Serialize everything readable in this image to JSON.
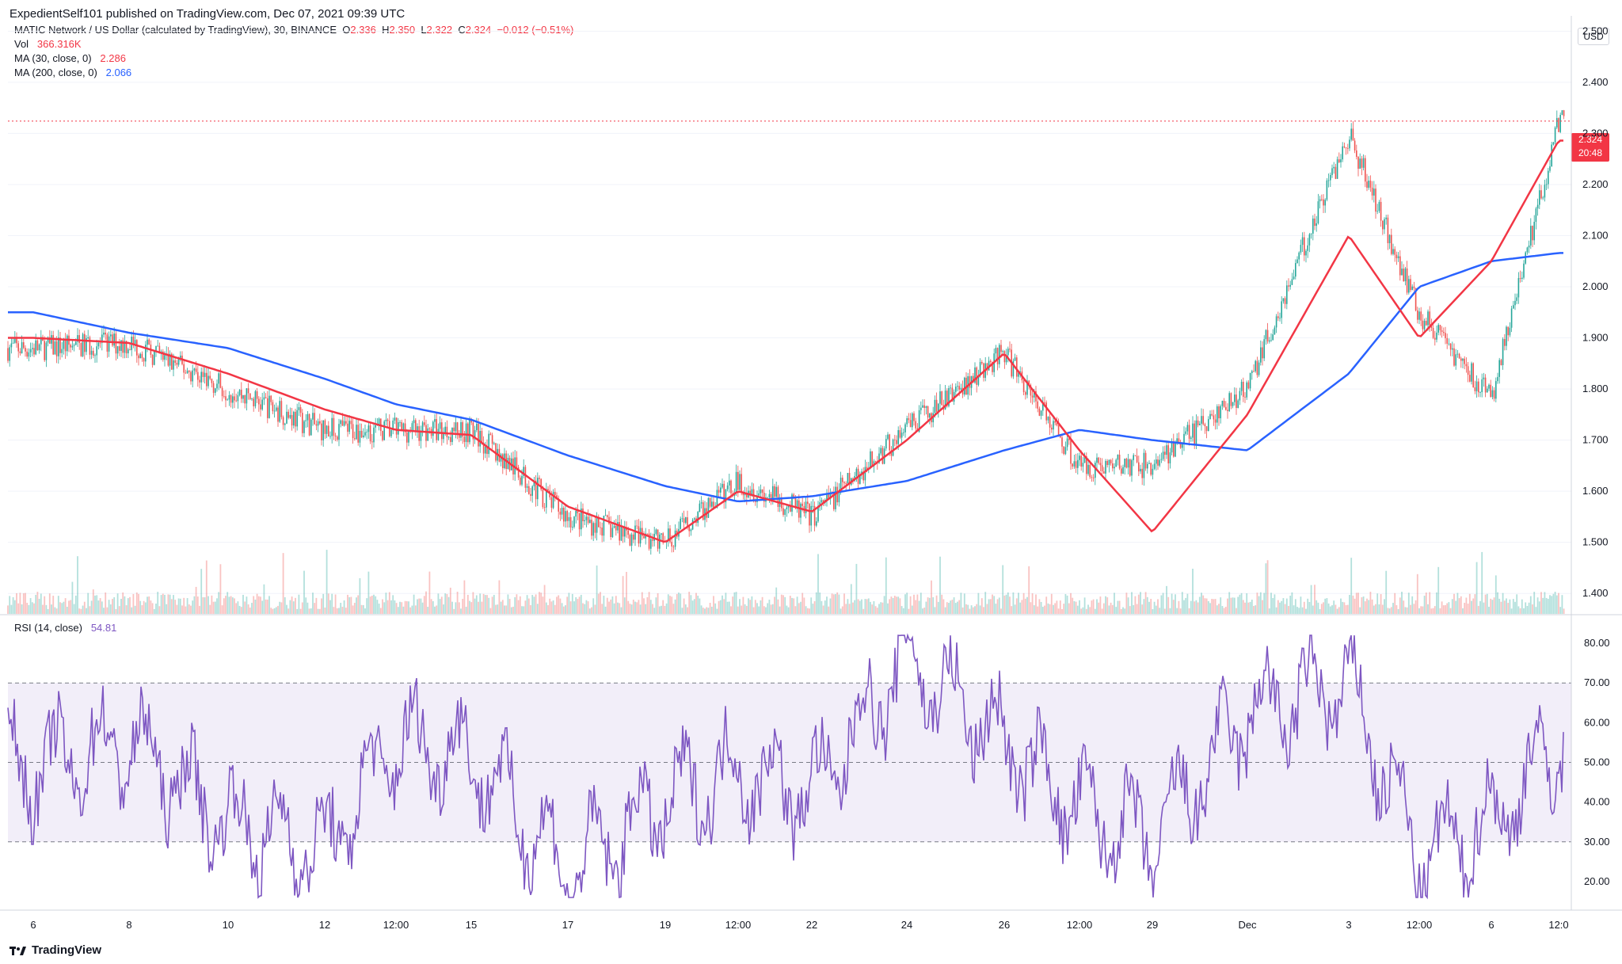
{
  "publisher": "ExpedientSelf101 published on TradingView.com, Dec 07, 2021 09:39 UTC",
  "symbol": {
    "name": "MATIC Network / US Dollar (calculated by TradingView), 30, BINANCE",
    "o_label": "O",
    "o": "2.336",
    "h_label": "H",
    "h": "2.350",
    "l_label": "L",
    "l": "2.322",
    "c_label": "C",
    "c": "2.324",
    "change": "−0.012 (−0.51%)"
  },
  "indicators": {
    "vol_label": "Vol",
    "vol": "366.316K",
    "ma30_label": "MA (30, close, 0)",
    "ma30": "2.286",
    "ma200_label": "MA (200, close, 0)",
    "ma200": "2.066",
    "rsi_label": "RSI (14, close)",
    "rsi": "54.81"
  },
  "currency": "USD",
  "last_price": {
    "price": "2.324",
    "countdown": "20:48"
  },
  "brand": "TradingView",
  "colors": {
    "up": "#26a69a",
    "down": "#ef5350",
    "ma30": "#f23645",
    "ma200": "#2962ff",
    "rsi": "#7e57c2"
  },
  "chart_data": [
    {
      "type": "candlestick",
      "interval": "30",
      "currency": "USD",
      "y_ticks": [
        "2.500",
        "2.400",
        "2.300",
        "2.200",
        "2.100",
        "2.000",
        "1.900",
        "1.800",
        "1.700",
        "1.600",
        "1.500",
        "1.400"
      ],
      "ylim": [
        1.36,
        2.53
      ],
      "x_ticks": [
        "6",
        "8",
        "10",
        "12",
        "12:00",
        "15",
        "17",
        "19",
        "12:00",
        "22",
        "24",
        "26",
        "12:00",
        "29",
        "Dec",
        "3",
        "12:00",
        "6",
        "12:0"
      ],
      "series": [
        {
          "name": "Price (close)",
          "points": [
            [
              "6",
              1.88
            ],
            [
              "8",
              1.89
            ],
            [
              "10",
              1.8
            ],
            [
              "12",
              1.72
            ],
            [
              "12:00",
              1.72
            ],
            [
              "15",
              1.72
            ],
            [
              "17",
              1.55
            ],
            [
              "19",
              1.5
            ],
            [
              "12:00",
              1.62
            ],
            [
              "22",
              1.55
            ],
            [
              "24",
              1.72
            ],
            [
              "26",
              1.87
            ],
            [
              "12:00",
              1.65
            ],
            [
              "29",
              1.65
            ],
            [
              "Dec",
              1.8
            ],
            [
              "3",
              2.3
            ],
            [
              "12:00",
              1.95
            ],
            [
              "6",
              1.78
            ],
            [
              "12:0",
              2.324
            ]
          ]
        },
        {
          "name": "MA (30, close, 0)",
          "points": [
            [
              "6",
              1.9
            ],
            [
              "8",
              1.89
            ],
            [
              "10",
              1.83
            ],
            [
              "12",
              1.76
            ],
            [
              "12:00",
              1.72
            ],
            [
              "15",
              1.71
            ],
            [
              "17",
              1.57
            ],
            [
              "19",
              1.5
            ],
            [
              "12:00",
              1.6
            ],
            [
              "22",
              1.56
            ],
            [
              "24",
              1.7
            ],
            [
              "26",
              1.87
            ],
            [
              "12:00",
              1.68
            ],
            [
              "29",
              1.52
            ],
            [
              "Dec",
              1.75
            ],
            [
              "3",
              2.1
            ],
            [
              "12:00",
              1.9
            ],
            [
              "6",
              2.05
            ],
            [
              "12:0",
              2.286
            ]
          ]
        },
        {
          "name": "MA (200, close, 0)",
          "points": [
            [
              "6",
              1.95
            ],
            [
              "8",
              1.91
            ],
            [
              "10",
              1.88
            ],
            [
              "12",
              1.82
            ],
            [
              "12:00",
              1.77
            ],
            [
              "15",
              1.74
            ],
            [
              "17",
              1.67
            ],
            [
              "19",
              1.61
            ],
            [
              "12:00",
              1.58
            ],
            [
              "22",
              1.59
            ],
            [
              "24",
              1.62
            ],
            [
              "26",
              1.68
            ],
            [
              "12:00",
              1.72
            ],
            [
              "29",
              1.7
            ],
            [
              "Dec",
              1.68
            ],
            [
              "3",
              1.83
            ],
            [
              "12:00",
              2.0
            ],
            [
              "6",
              2.05
            ],
            [
              "12:0",
              2.066
            ]
          ]
        }
      ],
      "volume": {
        "label": "Vol",
        "last": "366.316K",
        "spike_days": [
          "10",
          "Dec",
          "3",
          "12:00"
        ]
      }
    },
    {
      "type": "line",
      "title": "RSI (14, close)",
      "y_ticks": [
        "80.00",
        "70.00",
        "60.00",
        "50.00",
        "40.00",
        "30.00",
        "20.00"
      ],
      "ylim": [
        13,
        87
      ],
      "bands": {
        "upper": 70,
        "middle": 50,
        "lower": 30
      },
      "series": [
        {
          "name": "RSI (14, close)",
          "points": [
            [
              "6",
              48
            ],
            [
              "8",
              55
            ],
            [
              "10",
              35
            ],
            [
              "12",
              28
            ],
            [
              "12:00",
              55
            ],
            [
              "15",
              52
            ],
            [
              "17",
              22
            ],
            [
              "19",
              40
            ],
            [
              "12:00",
              48
            ],
            [
              "22",
              42
            ],
            [
              "24",
              76
            ],
            [
              "26",
              55
            ],
            [
              "12:00",
              38
            ],
            [
              "29",
              30
            ],
            [
              "Dec",
              62
            ],
            [
              "3",
              70
            ],
            [
              "12:00",
              25
            ],
            [
              "6",
              35
            ],
            [
              "12:0",
              54.81
            ]
          ]
        }
      ]
    }
  ]
}
